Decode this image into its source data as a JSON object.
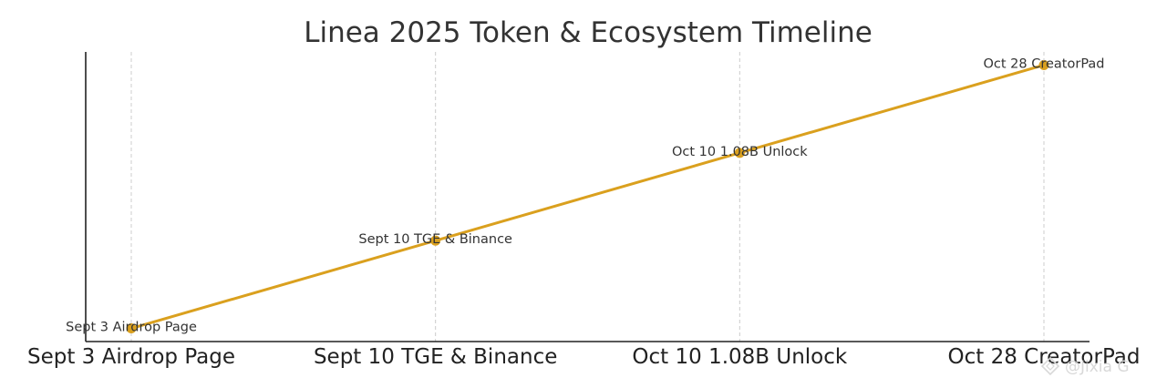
{
  "chart_data": {
    "type": "line",
    "title": "Linea 2025 Token & Ecosystem Timeline",
    "xlabel": "",
    "ylabel": "",
    "categories": [
      "Sept 3 Airdrop Page",
      "Sept 10 TGE & Binance",
      "Oct 10 1.08B Unlock",
      "Oct 28 CreatorPad"
    ],
    "values": [
      1,
      2,
      3,
      4
    ],
    "ylim": [
      0.85,
      4.15
    ],
    "series": [
      {
        "values": [
          1,
          2,
          3,
          4
        ],
        "point_labels": [
          "Sept 3 Airdrop Page",
          "Sept 10 TGE & Binance",
          "Oct 10 1.08B Unlock",
          "Oct 28 CreatorPad"
        ],
        "color": "#DAA01E"
      }
    ],
    "grid": {
      "x": true,
      "y": false
    },
    "grid_color": "#cccccc",
    "legend": "none"
  },
  "watermark": {
    "text": "@Jixia G",
    "icon": "diamond-logo-icon"
  }
}
